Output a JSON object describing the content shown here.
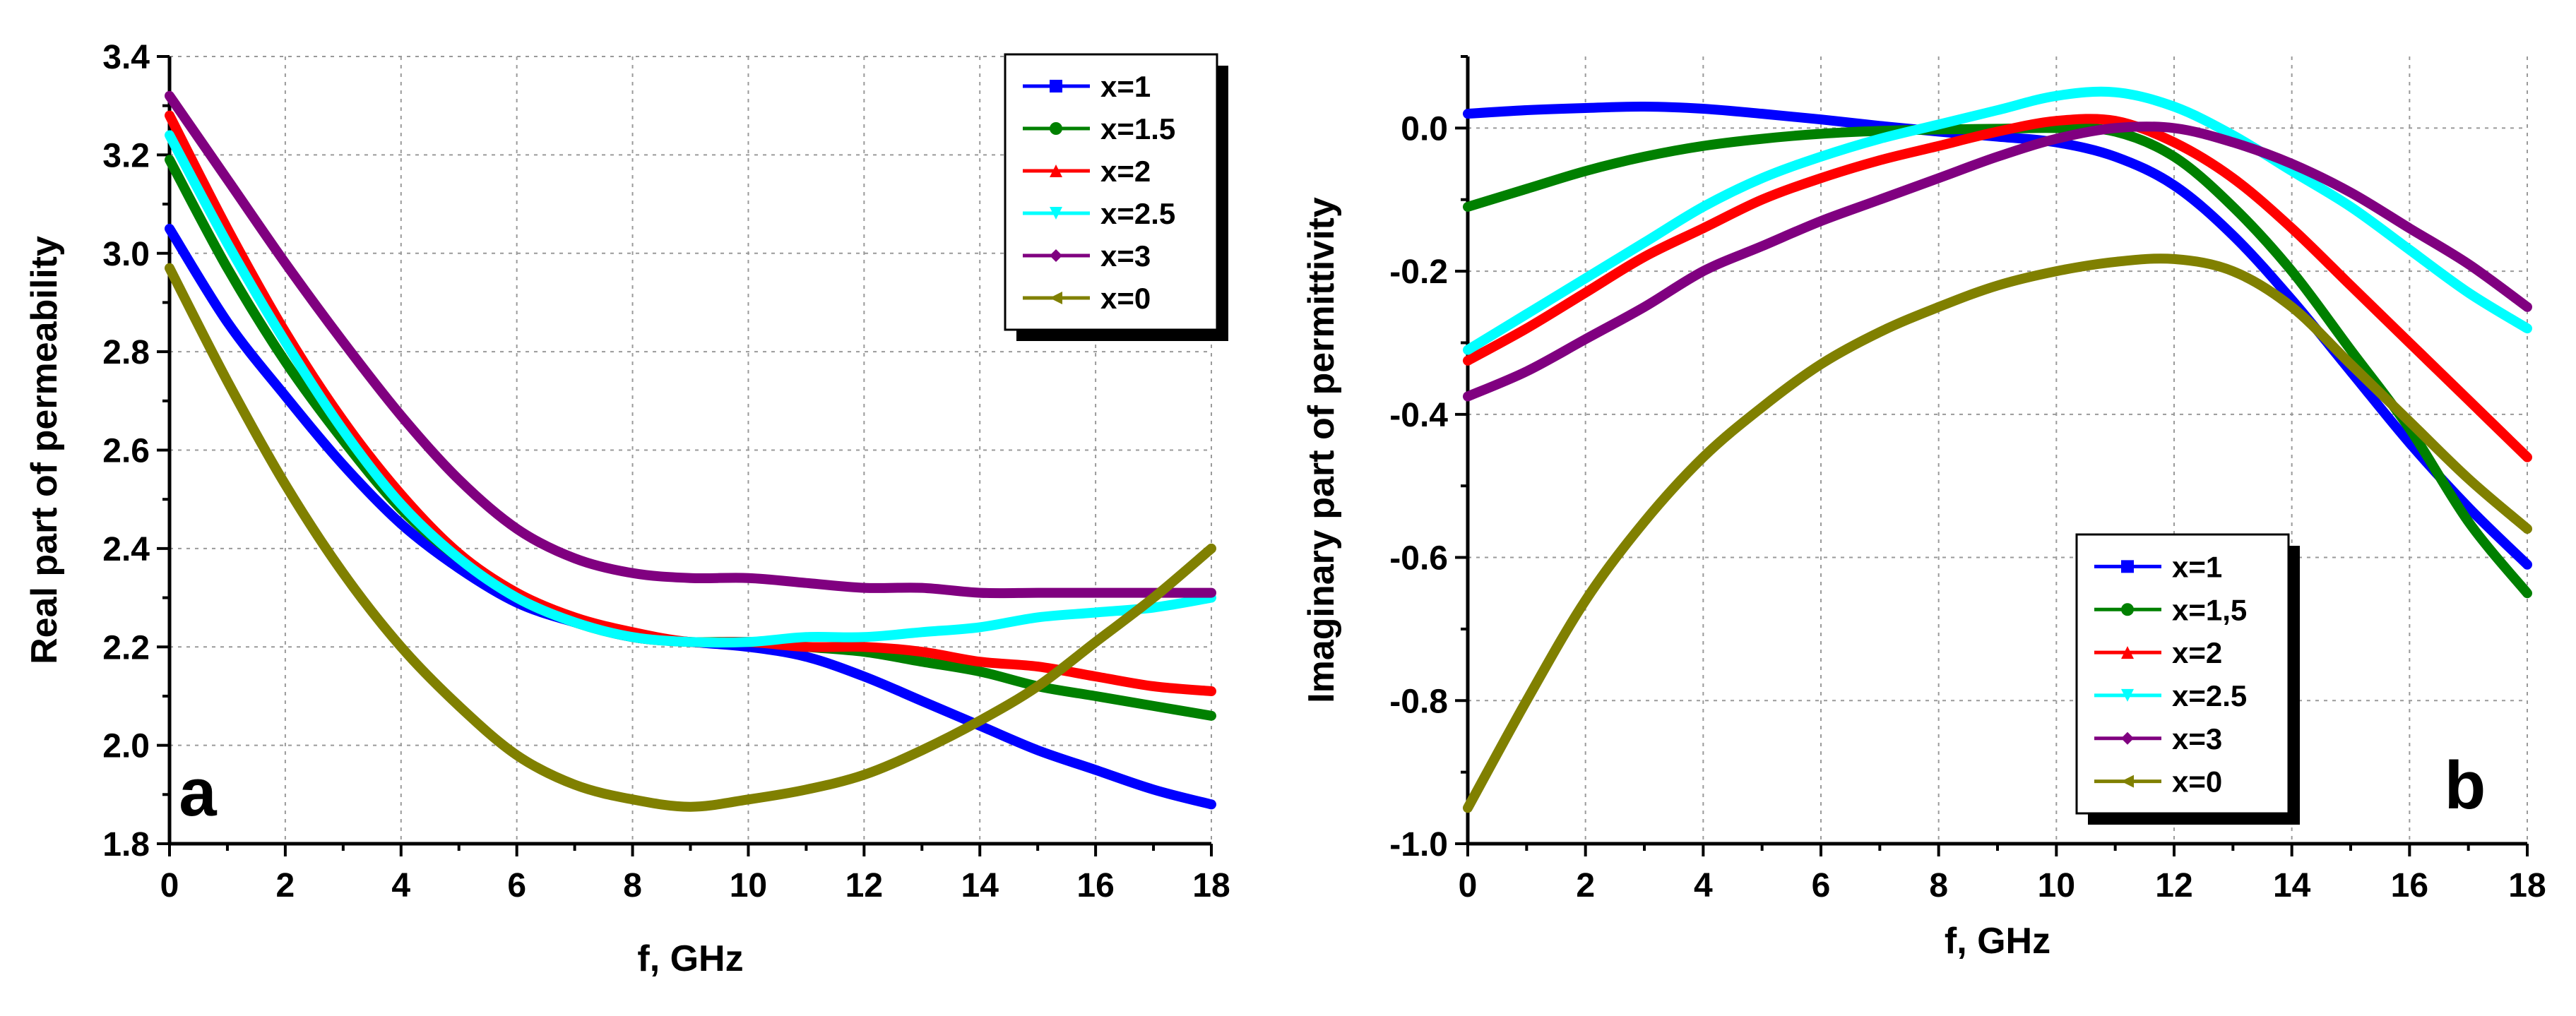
{
  "chart_data": [
    {
      "type": "line",
      "panel_letter": "a",
      "xlabel": "f, GHz",
      "ylabel": "Real part of permeability",
      "xlim": [
        0,
        18
      ],
      "ylim": [
        1.8,
        3.4
      ],
      "x_ticks": [
        "0",
        "2",
        "4",
        "6",
        "8",
        "10",
        "12",
        "14",
        "16",
        "18"
      ],
      "y_ticks": [
        "1.8",
        "2.0",
        "2.2",
        "2.4",
        "2.6",
        "2.8",
        "3.0",
        "3.2",
        "3.4"
      ],
      "grid": true,
      "legend_position": "top-right",
      "series": [
        {
          "name": "x=1",
          "color": "#0000ff",
          "marker": "square",
          "x": [
            0,
            1,
            2,
            3,
            4,
            5,
            6,
            7,
            8,
            9,
            10,
            11,
            12,
            13,
            14,
            15,
            16,
            17,
            18
          ],
          "values": [
            3.05,
            2.86,
            2.71,
            2.57,
            2.45,
            2.36,
            2.29,
            2.25,
            2.22,
            2.21,
            2.2,
            2.18,
            2.14,
            2.09,
            2.04,
            1.99,
            1.95,
            1.91,
            1.88
          ]
        },
        {
          "name": "x=1.5",
          "color": "#008000",
          "marker": "circle",
          "x": [
            0,
            1,
            2,
            3,
            4,
            5,
            6,
            7,
            8,
            9,
            10,
            11,
            12,
            13,
            14,
            15,
            16,
            17,
            18
          ],
          "values": [
            3.19,
            2.97,
            2.78,
            2.62,
            2.48,
            2.38,
            2.3,
            2.25,
            2.22,
            2.21,
            2.21,
            2.2,
            2.19,
            2.17,
            2.15,
            2.12,
            2.1,
            2.08,
            2.06
          ]
        },
        {
          "name": "x=2",
          "color": "#ff0000",
          "marker": "triangle-up",
          "x": [
            0,
            1,
            2,
            3,
            4,
            5,
            6,
            7,
            8,
            9,
            10,
            11,
            12,
            13,
            14,
            15,
            16,
            17,
            18
          ],
          "values": [
            3.28,
            3.05,
            2.84,
            2.66,
            2.51,
            2.39,
            2.31,
            2.26,
            2.23,
            2.21,
            2.21,
            2.2,
            2.2,
            2.19,
            2.17,
            2.16,
            2.14,
            2.12,
            2.11
          ]
        },
        {
          "name": "x=2.5",
          "color": "#00ffff",
          "marker": "triangle-down",
          "x": [
            0,
            1,
            2,
            3,
            4,
            5,
            6,
            7,
            8,
            9,
            10,
            11,
            12,
            13,
            14,
            15,
            16,
            17,
            18
          ],
          "values": [
            3.24,
            3.02,
            2.82,
            2.64,
            2.49,
            2.38,
            2.3,
            2.25,
            2.22,
            2.21,
            2.21,
            2.22,
            2.22,
            2.23,
            2.24,
            2.26,
            2.27,
            2.28,
            2.3
          ]
        },
        {
          "name": "x=3",
          "color": "#800080",
          "marker": "diamond",
          "x": [
            0,
            1,
            2,
            3,
            4,
            5,
            6,
            7,
            8,
            9,
            10,
            11,
            12,
            13,
            14,
            15,
            16,
            17,
            18
          ],
          "values": [
            3.32,
            3.15,
            2.98,
            2.82,
            2.67,
            2.54,
            2.44,
            2.38,
            2.35,
            2.34,
            2.34,
            2.33,
            2.32,
            2.32,
            2.31,
            2.31,
            2.31,
            2.31,
            2.31
          ]
        },
        {
          "name": "x=0",
          "color": "#808000",
          "marker": "triangle-left",
          "x": [
            0,
            1,
            2,
            3,
            4,
            5,
            6,
            7,
            8,
            9,
            10,
            11,
            12,
            13,
            14,
            15,
            16,
            17,
            18
          ],
          "values": [
            2.97,
            2.74,
            2.53,
            2.35,
            2.2,
            2.08,
            1.98,
            1.92,
            1.89,
            1.875,
            1.89,
            1.91,
            1.94,
            1.99,
            2.05,
            2.12,
            2.21,
            2.3,
            2.4
          ]
        }
      ]
    },
    {
      "type": "line",
      "panel_letter": "b",
      "xlabel": "f, GHz",
      "ylabel": "Imaginary part of permittivity",
      "xlim": [
        0,
        18
      ],
      "ylim": [
        -1.0,
        0.1
      ],
      "x_ticks": [
        "0",
        "2",
        "4",
        "6",
        "8",
        "10",
        "12",
        "14",
        "16",
        "18"
      ],
      "y_ticks": [
        "-1.0",
        "-0.8",
        "-0.6",
        "-0.4",
        "-0.2",
        "0.0"
      ],
      "grid": true,
      "legend_position": "bottom-right",
      "series": [
        {
          "name": "x=1",
          "color": "#0000ff",
          "marker": "square",
          "x": [
            0,
            1,
            2,
            3,
            4,
            5,
            6,
            7,
            8,
            9,
            10,
            11,
            12,
            13,
            14,
            15,
            16,
            17,
            18
          ],
          "values": [
            0.02,
            0.025,
            0.028,
            0.03,
            0.027,
            0.02,
            0.012,
            0.003,
            -0.005,
            -0.012,
            -0.02,
            -0.04,
            -0.08,
            -0.15,
            -0.24,
            -0.34,
            -0.44,
            -0.53,
            -0.61
          ]
        },
        {
          "name": "x=1,5",
          "color": "#008000",
          "marker": "circle",
          "x": [
            0,
            1,
            2,
            3,
            4,
            5,
            6,
            7,
            8,
            9,
            10,
            11,
            12,
            13,
            14,
            15,
            16,
            17,
            18
          ],
          "values": [
            -0.11,
            -0.085,
            -0.06,
            -0.04,
            -0.025,
            -0.015,
            -0.008,
            -0.004,
            -0.002,
            -0.001,
            0.0,
            -0.005,
            -0.04,
            -0.11,
            -0.2,
            -0.31,
            -0.42,
            -0.55,
            -0.65
          ]
        },
        {
          "name": "x=2",
          "color": "#ff0000",
          "marker": "triangle-up",
          "x": [
            0,
            1,
            2,
            3,
            4,
            5,
            6,
            7,
            8,
            9,
            10,
            11,
            12,
            13,
            14,
            15,
            16,
            17,
            18
          ],
          "values": [
            -0.325,
            -0.28,
            -0.23,
            -0.18,
            -0.14,
            -0.1,
            -0.07,
            -0.045,
            -0.025,
            -0.005,
            0.01,
            0.01,
            -0.02,
            -0.07,
            -0.14,
            -0.22,
            -0.3,
            -0.38,
            -0.46
          ]
        },
        {
          "name": "x=2.5",
          "color": "#00ffff",
          "marker": "triangle-down",
          "x": [
            0,
            1,
            2,
            3,
            4,
            5,
            6,
            7,
            8,
            9,
            10,
            11,
            12,
            13,
            14,
            15,
            16,
            17,
            18
          ],
          "values": [
            -0.31,
            -0.26,
            -0.21,
            -0.16,
            -0.11,
            -0.07,
            -0.04,
            -0.015,
            0.005,
            0.025,
            0.045,
            0.05,
            0.03,
            -0.01,
            -0.06,
            -0.11,
            -0.17,
            -0.23,
            -0.28
          ]
        },
        {
          "name": "x=3",
          "color": "#800080",
          "marker": "diamond",
          "x": [
            0,
            1,
            2,
            3,
            4,
            5,
            6,
            7,
            8,
            9,
            10,
            11,
            12,
            13,
            14,
            15,
            16,
            17,
            18
          ],
          "values": [
            -0.375,
            -0.34,
            -0.295,
            -0.25,
            -0.2,
            -0.165,
            -0.13,
            -0.1,
            -0.07,
            -0.04,
            -0.015,
            0.0,
            0.0,
            -0.02,
            -0.05,
            -0.09,
            -0.14,
            -0.19,
            -0.25
          ]
        },
        {
          "name": "x=0",
          "color": "#808000",
          "marker": "triangle-left",
          "x": [
            0,
            1,
            2,
            3,
            4,
            5,
            6,
            7,
            8,
            9,
            10,
            11,
            12,
            13,
            14,
            15,
            16,
            17,
            18
          ],
          "values": [
            -0.95,
            -0.8,
            -0.66,
            -0.55,
            -0.46,
            -0.39,
            -0.33,
            -0.285,
            -0.25,
            -0.22,
            -0.2,
            -0.187,
            -0.183,
            -0.2,
            -0.25,
            -0.33,
            -0.41,
            -0.49,
            -0.56
          ]
        }
      ]
    }
  ]
}
